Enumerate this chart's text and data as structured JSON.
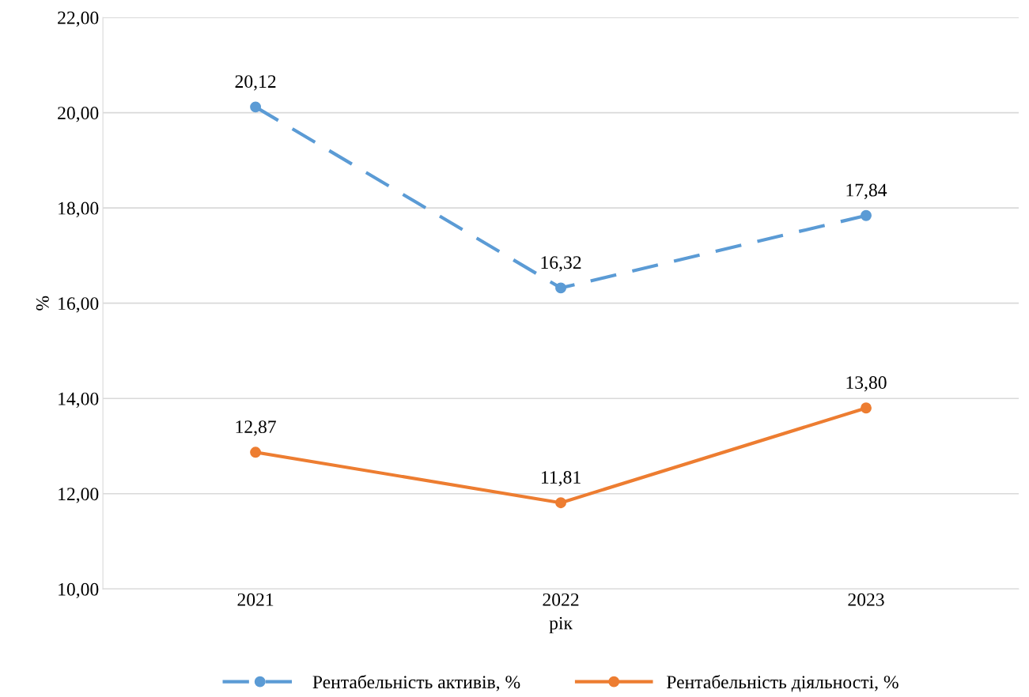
{
  "chart_data": {
    "type": "line",
    "xlabel": "рік",
    "ylabel": "%",
    "categories": [
      "2021",
      "2022",
      "2023"
    ],
    "series": [
      {
        "name": "Рентабельність активів, %",
        "color": "#5b9bd5",
        "line_style": "dashed",
        "values": [
          20.12,
          16.32,
          17.84
        ],
        "value_labels": [
          "20,12",
          "16,32",
          "17,84"
        ]
      },
      {
        "name": "Рентабельність діяльності, %",
        "color": "#ed7d31",
        "line_style": "solid",
        "values": [
          12.87,
          11.81,
          13.8
        ],
        "value_labels": [
          "12,87",
          "11,81",
          "13,80"
        ]
      }
    ],
    "ylim": [
      10,
      22
    ],
    "yticks": [
      {
        "value": 10,
        "label": "10,00"
      },
      {
        "value": 12,
        "label": "12,00"
      },
      {
        "value": 14,
        "label": "14,00"
      },
      {
        "value": 16,
        "label": "16,00"
      },
      {
        "value": 18,
        "label": "18,00"
      },
      {
        "value": 20,
        "label": "20,00"
      },
      {
        "value": 22,
        "label": "22,00"
      }
    ],
    "grid": "y",
    "legend": "bottom",
    "marker": "circle"
  }
}
